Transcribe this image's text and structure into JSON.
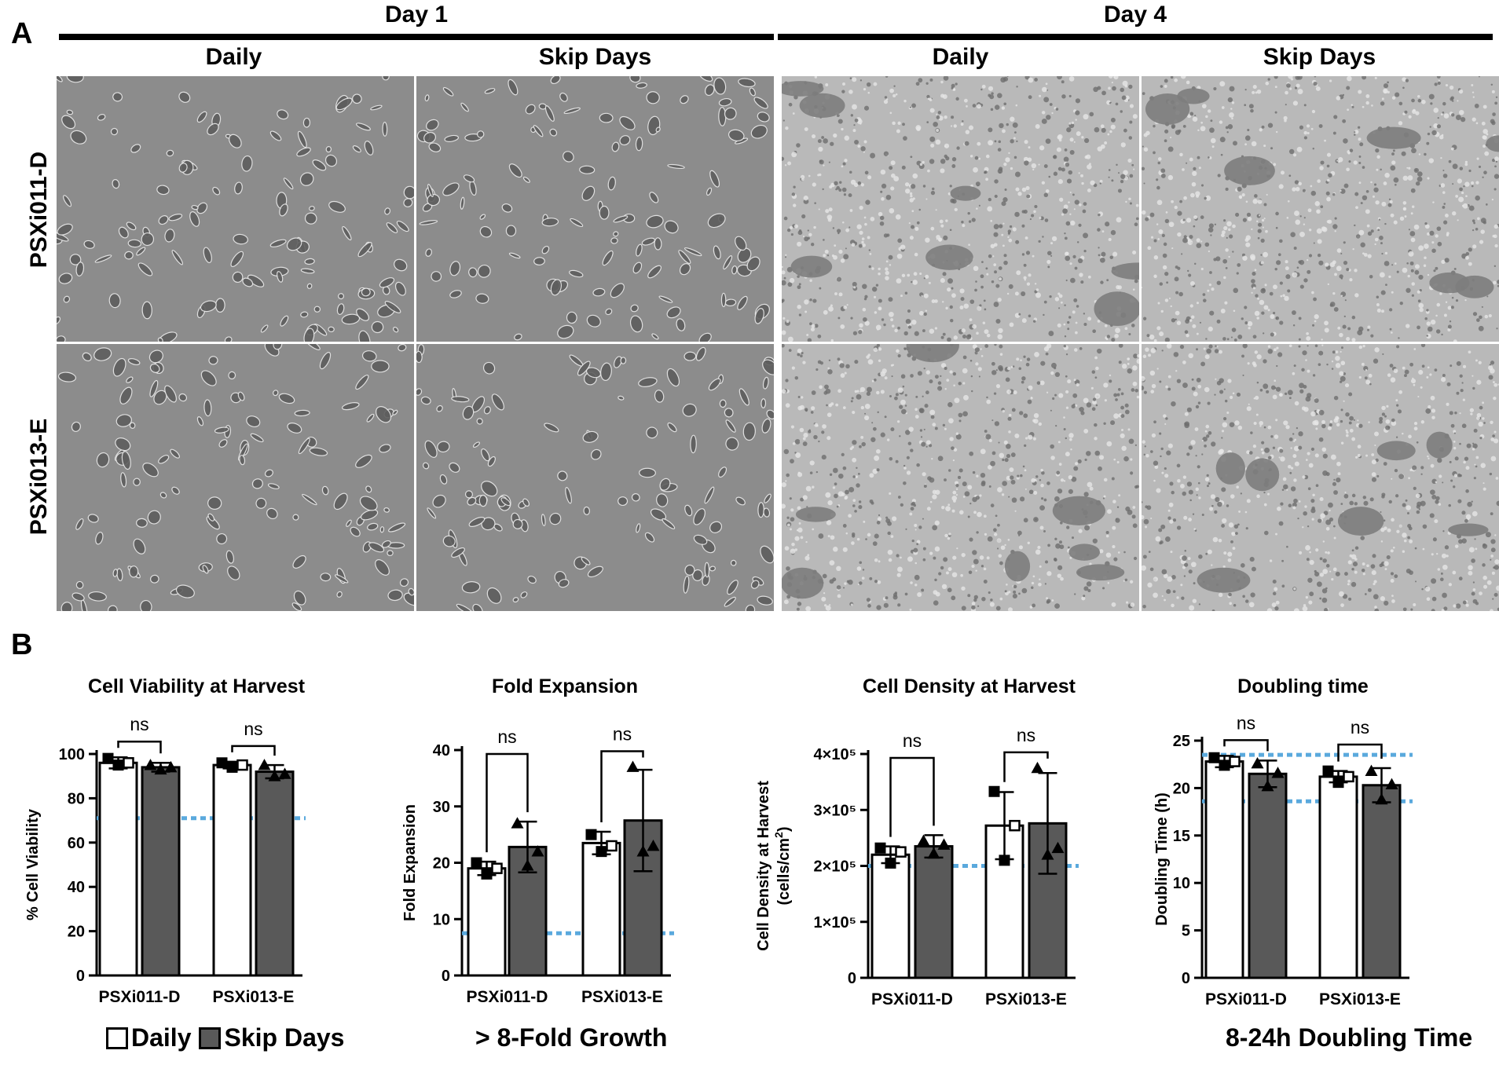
{
  "panel_a": {
    "letter": "A",
    "days": [
      {
        "label": "Day 1",
        "conditions": [
          "Daily",
          "Skip Days"
        ]
      },
      {
        "label": "Day 4",
        "conditions": [
          "Daily",
          "Skip Days"
        ]
      }
    ],
    "rows": [
      "PSXi011-D",
      "PSXi013-E"
    ]
  },
  "panel_b": {
    "letter": "B",
    "legend": {
      "daily": "Daily",
      "skip": "Skip Days"
    },
    "fold_footer": "> 8-Fold Growth",
    "doubling_footer": "8-24h Doubling Time"
  },
  "colors": {
    "daily_fill": "#ffffff",
    "skip_fill": "#595959",
    "threshold": "#5aa9dd",
    "micro_bg": "#8f8f8f"
  },
  "chart_data": [
    {
      "type": "bar",
      "title": "Cell Viability at Harvest",
      "ylabel": "% Cell Viability",
      "categories": [
        "PSXi011-D",
        "PSXi013-E"
      ],
      "ylim": [
        0,
        100
      ],
      "yticks": [
        {
          "v": 0,
          "label": "0"
        },
        {
          "v": 20,
          "label": "20"
        },
        {
          "v": 40,
          "label": "40"
        },
        {
          "v": 60,
          "label": "60"
        },
        {
          "v": 80,
          "label": "80"
        },
        {
          "v": 100,
          "label": "100"
        }
      ],
      "series": [
        {
          "name": "Daily",
          "values": [
            96,
            95
          ],
          "errors": [
            2.5,
            1.5
          ],
          "points": [
            [
              98,
              95,
              96
            ],
            [
              96,
              94,
              95
            ]
          ]
        },
        {
          "name": "Skip Days",
          "values": [
            94,
            92
          ],
          "errors": [
            2,
            3
          ],
          "points": [
            [
              95,
              93,
              94
            ],
            [
              95,
              90,
              91
            ]
          ]
        }
      ],
      "thresholds": [
        71
      ],
      "significance": [
        "ns",
        "ns"
      ]
    },
    {
      "type": "bar",
      "title": "Fold Expansion",
      "ylabel": "Fold Expansion",
      "categories": [
        "PSXi011-D",
        "PSXi013-E"
      ],
      "ylim": [
        0,
        40
      ],
      "yticks": [
        {
          "v": 0,
          "label": "0"
        },
        {
          "v": 10,
          "label": "10"
        },
        {
          "v": 20,
          "label": "20"
        },
        {
          "v": 30,
          "label": "30"
        },
        {
          "v": 40,
          "label": "40"
        }
      ],
      "series": [
        {
          "name": "Daily",
          "values": [
            19,
            23.5
          ],
          "errors": [
            1.2,
            2
          ],
          "points": [
            [
              20,
              18,
              19
            ],
            [
              25,
              22,
              23
            ]
          ]
        },
        {
          "name": "Skip Days",
          "values": [
            22.8,
            27.5
          ],
          "errors": [
            4.5,
            9
          ],
          "points": [
            [
              27,
              19.5,
              22
            ],
            [
              37,
              22,
              23
            ]
          ]
        }
      ],
      "thresholds": [
        7.5
      ],
      "significance": [
        "ns",
        "ns"
      ]
    },
    {
      "type": "bar",
      "title": "Cell Density at Harvest",
      "ylabel": "Cell Density at Harvest",
      "ylabel2": "(cells/cm",
      "ylabel2_sup": "2",
      "ylabel2_end": ")",
      "categories": [
        "PSXi011-D",
        "PSXi013-E"
      ],
      "ylim": [
        0,
        400000
      ],
      "yticks": [
        {
          "v": 0,
          "label": "0"
        },
        {
          "v": 100000,
          "label": "1×10⁵"
        },
        {
          "v": 200000,
          "label": "2×10⁵"
        },
        {
          "v": 300000,
          "label": "3×10⁵"
        },
        {
          "v": 400000,
          "label": "4×10⁵"
        }
      ],
      "series": [
        {
          "name": "Daily",
          "values": [
            220000,
            272000
          ],
          "errors": [
            15000,
            60000
          ],
          "points": [
            [
              232000,
              205000,
              225000
            ],
            [
              333000,
              210000,
              272000
            ]
          ]
        },
        {
          "name": "Skip Days",
          "values": [
            235000,
            276000
          ],
          "errors": [
            20000,
            90000
          ],
          "points": [
            [
              245000,
              222000,
              238000
            ],
            [
              375000,
              220000,
              232000
            ]
          ]
        }
      ],
      "thresholds": [
        200000
      ],
      "significance": [
        "ns",
        "ns"
      ]
    },
    {
      "type": "bar",
      "title": "Doubling time",
      "ylabel": "Doubling Time (h)",
      "categories": [
        "PSXi011-D",
        "PSXi013-E"
      ],
      "ylim": [
        0,
        25
      ],
      "yticks": [
        {
          "v": 0,
          "label": "0"
        },
        {
          "v": 5,
          "label": "5"
        },
        {
          "v": 10,
          "label": "10"
        },
        {
          "v": 15,
          "label": "15"
        },
        {
          "v": 20,
          "label": "20"
        },
        {
          "v": 25,
          "label": "25"
        }
      ],
      "series": [
        {
          "name": "Daily",
          "values": [
            22.8,
            21.2
          ],
          "errors": [
            0.6,
            0.6
          ],
          "points": [
            [
              23.2,
              22.4,
              22.8
            ],
            [
              21.8,
              20.6,
              21.2
            ]
          ]
        },
        {
          "name": "Skip Days",
          "values": [
            21.5,
            20.3
          ],
          "errors": [
            1.4,
            1.8
          ],
          "points": [
            [
              22.6,
              20.2,
              21.6
            ],
            [
              21.8,
              18.8,
              20.4
            ]
          ]
        }
      ],
      "thresholds": [
        23.5,
        18.6
      ],
      "significance": [
        "ns",
        "ns"
      ]
    }
  ]
}
